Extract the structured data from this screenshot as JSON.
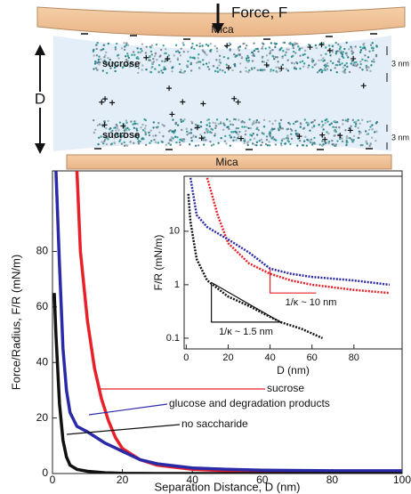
{
  "diagram": {
    "force_label": "Force, F",
    "top_plate": "Mica",
    "bottom_plate": "Mica",
    "gap_label": "D",
    "layers": [
      "sucrose",
      "sucrose"
    ],
    "layer_thickness": [
      "3 nm",
      "3 nm"
    ]
  },
  "chart_data": [
    {
      "type": "line",
      "xlabel": "Separation Distance, D (nm)",
      "ylabel": "Force/Radius, F/R (mN/m)",
      "xlim": [
        0,
        100
      ],
      "ylim": [
        0,
        109
      ],
      "xticks": [
        0,
        20,
        40,
        60,
        80,
        100
      ],
      "yticks": [
        0,
        20,
        40,
        60,
        80
      ],
      "series": [
        {
          "name": "sucrose",
          "color": "#e8202a",
          "x": [
            7,
            8,
            10,
            12,
            14,
            16,
            18,
            20,
            25,
            30,
            40,
            50,
            60,
            80,
            100
          ],
          "values": [
            109,
            80,
            55,
            38,
            27,
            19,
            13,
            9,
            5,
            3,
            1.5,
            1,
            0.8,
            0.6,
            0.5
          ]
        },
        {
          "name": "glucose and degradation products",
          "color": "#2a2aa8",
          "x": [
            1,
            2,
            3,
            4,
            5,
            7,
            10,
            15,
            20,
            25,
            30,
            40,
            50,
            60,
            80,
            100
          ],
          "values": [
            109,
            75,
            45,
            30,
            22,
            17,
            15,
            11,
            8,
            5,
            3.5,
            2,
            1.5,
            1.2,
            1,
            1
          ]
        },
        {
          "name": "no saccharide",
          "color": "#111111",
          "x": [
            0.5,
            1,
            2,
            3,
            4,
            5,
            7,
            10,
            15,
            20,
            30,
            40,
            60,
            80,
            100
          ],
          "values": [
            65,
            50,
            25,
            12,
            6,
            3,
            1.5,
            0.8,
            0.3,
            0.1,
            0,
            0,
            0,
            0,
            0
          ]
        }
      ]
    },
    {
      "type": "line",
      "xlabel": "D (nm)",
      "ylabel": "F/R (mN/m)",
      "log_y": true,
      "xlim": [
        -1,
        103
      ],
      "ylim": [
        0.063,
        107
      ],
      "xticks": [
        0,
        20,
        40,
        60,
        80
      ],
      "yticks": [
        0.1,
        1,
        10
      ],
      "series": [
        {
          "color": "#e8202a",
          "x": [
            10,
            15,
            20,
            30,
            40,
            50,
            60,
            80,
            97
          ],
          "values": [
            100,
            20,
            6,
            2.5,
            1.6,
            1.2,
            1,
            0.8,
            0.7
          ]
        },
        {
          "color": "#2a2aa8",
          "x": [
            2,
            5,
            10,
            20,
            30,
            40,
            50,
            60,
            80,
            97
          ],
          "values": [
            100,
            20,
            12,
            7,
            4,
            2,
            1.6,
            1.4,
            1.2,
            1
          ]
        },
        {
          "color": "#111111",
          "x": [
            1,
            2,
            5,
            10,
            20,
            30,
            40,
            45,
            55,
            65
          ],
          "values": [
            50,
            15,
            3,
            1.2,
            0.6,
            0.4,
            0.25,
            0.2,
            0.15,
            0.1
          ]
        }
      ],
      "annotations": [
        {
          "text": "1/κ ~ 10 nm",
          "color": "#e8202a",
          "x": [
            40,
            40,
            62
          ],
          "y": [
            2,
            0.7,
            0.7
          ]
        },
        {
          "text": "1/κ ~ 1.5 nm",
          "color": "#111111",
          "x": [
            12,
            12,
            45,
            12
          ],
          "y": [
            1.1,
            0.2,
            0.2,
            1.1
          ]
        }
      ]
    }
  ]
}
